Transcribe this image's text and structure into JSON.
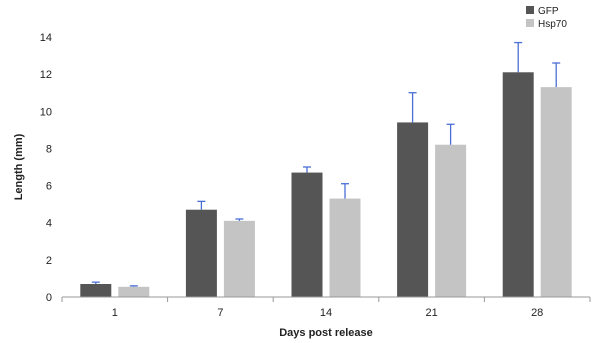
{
  "chart_data": {
    "type": "bar",
    "categories": [
      "1",
      "7",
      "14",
      "21",
      "28"
    ],
    "series": [
      {
        "name": "GFP",
        "values": [
          0.7,
          4.7,
          6.7,
          9.4,
          12.1
        ],
        "errors": [
          0.1,
          0.45,
          0.3,
          1.6,
          1.6
        ],
        "color": "#555555"
      },
      {
        "name": "Hsp70",
        "values": [
          0.55,
          4.1,
          5.3,
          8.2,
          11.3
        ],
        "errors": [
          0.05,
          0.1,
          0.8,
          1.1,
          1.3
        ],
        "color": "#c4c4c4"
      }
    ],
    "error_bar_color": "#4a6fd4",
    "title": "",
    "xlabel": "Days  post release",
    "ylabel": "Length (mm)",
    "ylim": [
      0,
      14
    ],
    "yticks": [
      0,
      2,
      4,
      6,
      8,
      10,
      12,
      14
    ],
    "grid": false,
    "legend_position": "top-right"
  }
}
